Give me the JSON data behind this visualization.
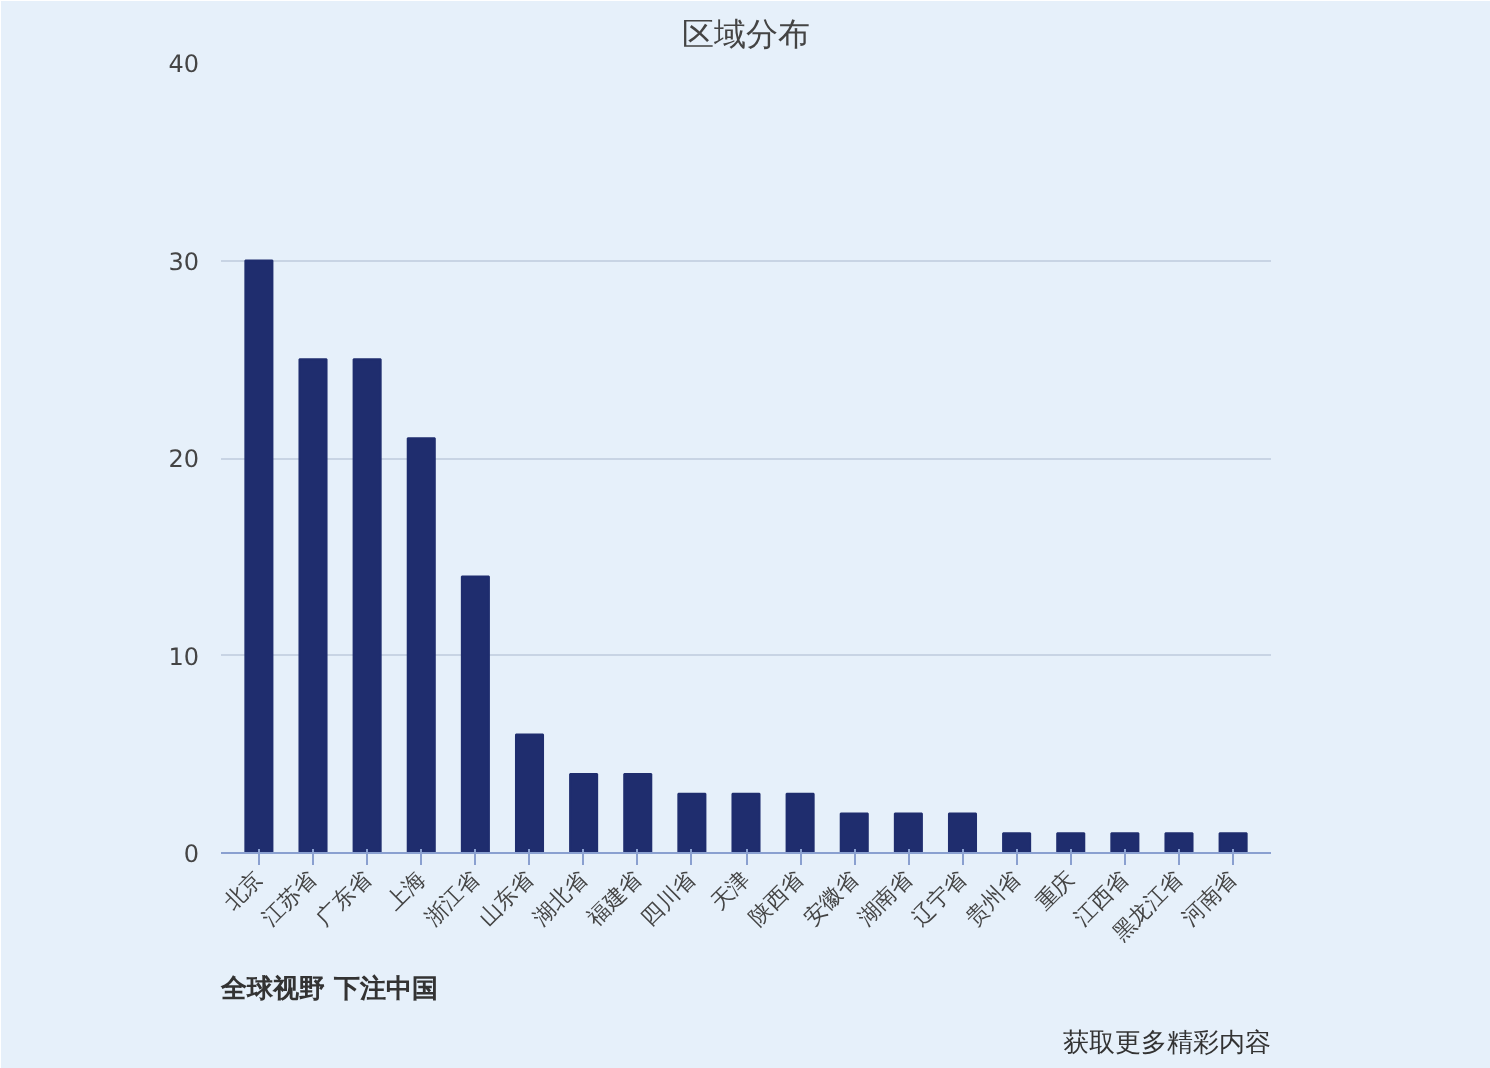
{
  "chart_data": {
    "type": "bar",
    "title": "区域分布",
    "categories": [
      "北京",
      "江苏省",
      "广东省",
      "上海",
      "浙江省",
      "山东省",
      "湖北省",
      "福建省",
      "四川省",
      "天津",
      "陕西省",
      "安徽省",
      "湖南省",
      "辽宁省",
      "贵州省",
      "重庆",
      "江西省",
      "黑龙江省",
      "河南省"
    ],
    "values": [
      30,
      25,
      25,
      21,
      14,
      6,
      4,
      4,
      3,
      3,
      3,
      2,
      2,
      2,
      1,
      1,
      1,
      1,
      1
    ],
    "color": "#1f2d6e",
    "ylim": [
      0,
      40
    ],
    "yticks": [
      0,
      10,
      20,
      30,
      40
    ],
    "grid": "y",
    "annotations": [
      "全球视野 下注中国",
      "获取更多精彩内容"
    ]
  }
}
